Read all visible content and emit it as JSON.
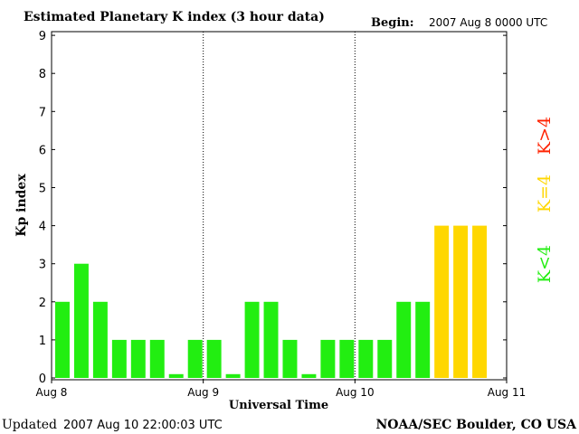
{
  "header": {
    "title": "Estimated Planetary K index (3 hour data)",
    "begin_label": "Begin:",
    "begin_value": "2007 Aug 8 0000 UTC"
  },
  "footer": {
    "updated_label": "Updated",
    "updated_value": "2007 Aug 10 22:00:03 UTC",
    "credit": "NOAA/SEC Boulder, CO USA"
  },
  "legend": {
    "greater": "K>4",
    "equal": "K=4",
    "less": "K<4"
  },
  "colors": {
    "low": "#22ee11",
    "moderate": "#ffd700",
    "high": "#ff2200",
    "axis": "#000000",
    "divider": "#000000"
  },
  "chart_data": {
    "type": "bar",
    "title": "Estimated Planetary K index (3 hour data)",
    "xlabel": "Universal Time",
    "ylabel": "Kp index",
    "ylim": [
      0,
      9
    ],
    "yticks": [
      "0",
      "1",
      "2",
      "3",
      "4",
      "5",
      "6",
      "7",
      "8",
      "9"
    ],
    "x_day_labels": [
      "Aug 8",
      "Aug 9",
      "Aug 10",
      "Aug 11"
    ],
    "bar_interval_hours": 3,
    "grid": false,
    "day_dividers": "dotted",
    "values": [
      2,
      3,
      2,
      1,
      1,
      1,
      0.1,
      1,
      1,
      0.1,
      2,
      2,
      1,
      0.1,
      1,
      1,
      1,
      1,
      2,
      2,
      4,
      4,
      4
    ]
  }
}
